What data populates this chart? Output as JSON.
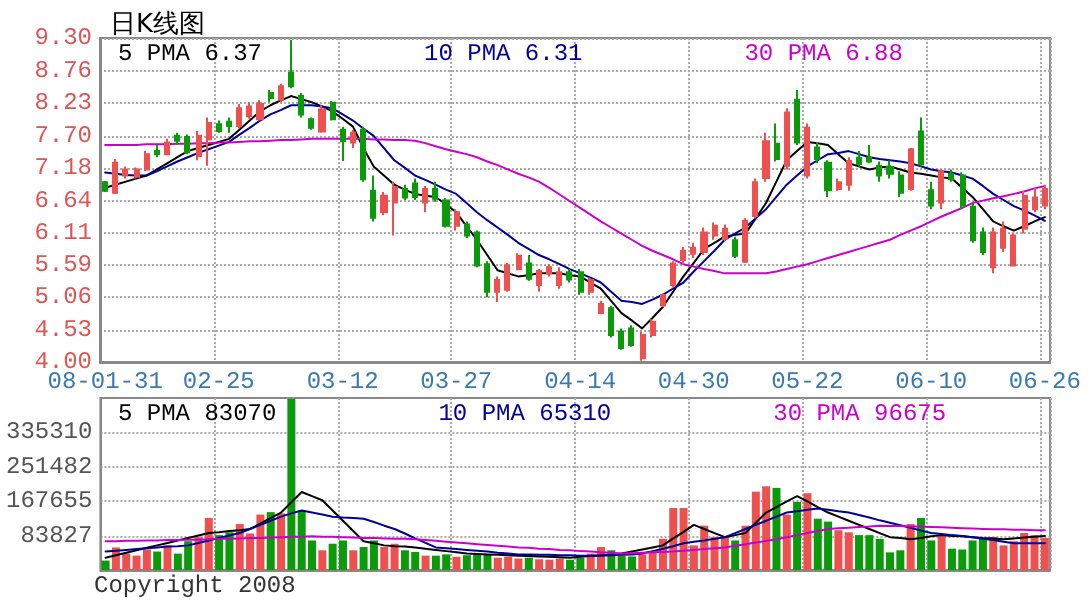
{
  "chart_data": [
    {
      "type": "candlestick",
      "title": "日K线图",
      "categories": [
        "08-01-31",
        null,
        null,
        null,
        null,
        null,
        null,
        null,
        null,
        null,
        null,
        "02-25",
        null,
        null,
        null,
        null,
        null,
        null,
        null,
        null,
        null,
        null,
        null,
        "03-12",
        null,
        null,
        null,
        null,
        null,
        null,
        null,
        null,
        null,
        null,
        "03-27",
        null,
        null,
        null,
        null,
        null,
        null,
        null,
        null,
        null,
        null,
        null,
        "04-14",
        null,
        null,
        null,
        null,
        null,
        null,
        null,
        null,
        null,
        null,
        "04-30",
        null,
        null,
        null,
        null,
        null,
        null,
        null,
        null,
        null,
        null,
        "05-22",
        null,
        null,
        null,
        null,
        null,
        null,
        null,
        null,
        null,
        null,
        null,
        "06-10",
        null,
        null,
        null,
        null,
        null,
        null,
        null,
        null,
        null,
        null,
        "06-26"
      ],
      "ohlc": [
        [
          6.94,
          6.96,
          6.78,
          6.8
        ],
        [
          6.77,
          7.32,
          6.75,
          7.26
        ],
        [
          7.05,
          7.2,
          7.0,
          7.15
        ],
        [
          7.03,
          7.18,
          7.0,
          7.15
        ],
        [
          7.15,
          7.45,
          7.12,
          7.4
        ],
        [
          7.45,
          7.55,
          7.35,
          7.4
        ],
        [
          7.4,
          7.65,
          7.38,
          7.59
        ],
        [
          7.7,
          7.75,
          7.55,
          7.62
        ],
        [
          7.68,
          7.72,
          7.4,
          7.43
        ],
        [
          7.37,
          7.78,
          7.3,
          7.7
        ],
        [
          7.64,
          8.0,
          7.21,
          7.91
        ],
        [
          7.89,
          7.95,
          7.75,
          7.78
        ],
        [
          7.93,
          8.0,
          7.75,
          7.86
        ],
        [
          7.86,
          8.22,
          7.82,
          8.15
        ],
        [
          8.02,
          8.25,
          7.98,
          8.18
        ],
        [
          7.97,
          8.28,
          7.95,
          8.22
        ],
        [
          8.4,
          8.45,
          8.25,
          8.32
        ],
        [
          8.29,
          8.55,
          8.25,
          8.51
        ],
        [
          8.73,
          9.27,
          8.48,
          8.51
        ],
        [
          8.35,
          8.4,
          8.0,
          8.05
        ],
        [
          7.97,
          8.0,
          7.8,
          7.83
        ],
        [
          7.77,
          8.2,
          7.75,
          8.13
        ],
        [
          8.24,
          8.27,
          7.95,
          7.97
        ],
        [
          7.8,
          7.85,
          7.29,
          7.61
        ],
        [
          7.59,
          7.8,
          7.5,
          7.75
        ],
        [
          7.8,
          7.85,
          6.95,
          6.99
        ],
        [
          6.8,
          7.05,
          6.3,
          6.36
        ],
        [
          6.45,
          6.78,
          6.4,
          6.72
        ],
        [
          6.61,
          6.95,
          6.07,
          6.86
        ],
        [
          6.83,
          6.9,
          6.65,
          6.69
        ],
        [
          6.92,
          7.0,
          6.65,
          6.7
        ],
        [
          6.61,
          6.88,
          6.45,
          6.83
        ],
        [
          6.83,
          6.95,
          6.62,
          6.67
        ],
        [
          6.64,
          6.68,
          6.2,
          6.23
        ],
        [
          6.23,
          6.5,
          6.15,
          6.45
        ],
        [
          6.25,
          6.3,
          6.03,
          6.07
        ],
        [
          6.12,
          6.15,
          5.55,
          5.58
        ],
        [
          5.6,
          5.65,
          5.06,
          5.15
        ],
        [
          5.15,
          5.4,
          4.98,
          5.34
        ],
        [
          5.18,
          5.62,
          5.15,
          5.58
        ],
        [
          5.52,
          5.78,
          5.5,
          5.74
        ],
        [
          5.61,
          5.75,
          5.33,
          5.36
        ],
        [
          5.26,
          5.52,
          5.15,
          5.49
        ],
        [
          5.45,
          5.6,
          5.4,
          5.55
        ],
        [
          5.26,
          5.55,
          5.2,
          5.47
        ],
        [
          5.47,
          5.52,
          5.3,
          5.35
        ],
        [
          5.47,
          5.52,
          5.1,
          5.15
        ],
        [
          5.15,
          5.38,
          5.1,
          5.34
        ],
        [
          4.8,
          5.0,
          4.78,
          4.95
        ],
        [
          4.88,
          4.92,
          4.4,
          4.44
        ],
        [
          4.5,
          4.55,
          4.2,
          4.23
        ],
        [
          4.55,
          4.6,
          4.25,
          4.28
        ],
        [
          4.06,
          4.5,
          4.02,
          4.44
        ],
        [
          4.44,
          4.7,
          4.4,
          4.66
        ],
        [
          4.93,
          5.12,
          4.9,
          5.09
        ],
        [
          5.26,
          5.65,
          5.22,
          5.61
        ],
        [
          5.67,
          5.88,
          5.6,
          5.82
        ],
        [
          5.77,
          5.95,
          5.7,
          5.87
        ],
        [
          5.8,
          6.2,
          5.75,
          6.12
        ],
        [
          6.07,
          6.28,
          6.0,
          6.23
        ],
        [
          6.02,
          6.25,
          5.98,
          6.18
        ],
        [
          5.99,
          6.05,
          5.7,
          5.74
        ],
        [
          5.64,
          6.35,
          5.62,
          6.31
        ],
        [
          6.39,
          7.0,
          6.35,
          6.94
        ],
        [
          7.01,
          7.75,
          6.95,
          7.61
        ],
        [
          7.57,
          7.9,
          7.28,
          7.32
        ],
        [
          7.21,
          8.15,
          7.15,
          8.08
        ],
        [
          8.29,
          8.45,
          7.55,
          7.59
        ],
        [
          7.05,
          7.9,
          7.0,
          7.83
        ],
        [
          7.51,
          7.6,
          7.25,
          7.32
        ],
        [
          7.26,
          7.3,
          6.7,
          6.81
        ],
        [
          6.83,
          7.0,
          6.8,
          6.94
        ],
        [
          6.9,
          7.35,
          6.8,
          7.29
        ],
        [
          7.34,
          7.45,
          7.2,
          7.24
        ],
        [
          7.34,
          7.55,
          7.25,
          7.28
        ],
        [
          7.21,
          7.28,
          6.95,
          7.05
        ],
        [
          7.19,
          7.3,
          7.0,
          7.08
        ],
        [
          7.05,
          7.12,
          6.7,
          6.77
        ],
        [
          6.83,
          7.5,
          6.8,
          7.48
        ],
        [
          7.77,
          8.0,
          7.2,
          7.23
        ],
        [
          6.81,
          6.95,
          6.5,
          6.56
        ],
        [
          6.61,
          7.15,
          6.5,
          7.12
        ],
        [
          7.08,
          7.15,
          6.95,
          6.99
        ],
        [
          7.05,
          7.1,
          6.5,
          6.56
        ],
        [
          6.54,
          6.6,
          5.95,
          5.99
        ],
        [
          6.12,
          6.2,
          5.75,
          5.8
        ],
        [
          5.55,
          6.2,
          5.45,
          6.12
        ],
        [
          5.87,
          6.3,
          5.8,
          6.18
        ],
        [
          5.58,
          6.1,
          5.58,
          6.07
        ],
        [
          6.18,
          6.8,
          6.1,
          6.72
        ],
        [
          6.5,
          6.85,
          6.45,
          6.69
        ],
        [
          6.56,
          6.9,
          6.5,
          6.83
        ]
      ],
      "colors": [
        "#0a9a0a",
        "#ee5050",
        "#ee5050",
        "#ee5050",
        "#ee5050",
        "#0a9a0a",
        "#ee5050",
        "#0a9a0a",
        "#0a9a0a",
        "#ee5050",
        "#ee5050",
        "#0a9a0a",
        "#0a9a0a",
        "#ee5050",
        "#ee5050",
        "#ee5050",
        "#0a9a0a",
        "#ee5050",
        "#0a9a0a",
        "#0a9a0a",
        "#0a9a0a",
        "#ee5050",
        "#0a9a0a",
        "#0a9a0a",
        "#ee5050",
        "#0a9a0a",
        "#0a9a0a",
        "#ee5050",
        "#ee5050",
        "#0a9a0a",
        "#0a9a0a",
        "#ee5050",
        "#0a9a0a",
        "#0a9a0a",
        "#ee5050",
        "#0a9a0a",
        "#0a9a0a",
        "#0a9a0a",
        "#ee5050",
        "#ee5050",
        "#ee5050",
        "#0a9a0a",
        "#ee5050",
        "#ee5050",
        "#ee5050",
        "#0a9a0a",
        "#0a9a0a",
        "#ee5050",
        "#ee5050",
        "#0a9a0a",
        "#0a9a0a",
        "#0a9a0a",
        "#ee5050",
        "#ee5050",
        "#ee5050",
        "#ee5050",
        "#ee5050",
        "#ee5050",
        "#ee5050",
        "#ee5050",
        "#ee5050",
        "#0a9a0a",
        "#ee5050",
        "#ee5050",
        "#ee5050",
        "#0a9a0a",
        "#ee5050",
        "#0a9a0a",
        "#ee5050",
        "#0a9a0a",
        "#0a9a0a",
        "#ee5050",
        "#ee5050",
        "#0a9a0a",
        "#0a9a0a",
        "#0a9a0a",
        "#0a9a0a",
        "#0a9a0a",
        "#ee5050",
        "#0a9a0a",
        "#0a9a0a",
        "#ee5050",
        "#0a9a0a",
        "#0a9a0a",
        "#0a9a0a",
        "#0a9a0a",
        "#ee5050",
        "#ee5050",
        "#ee5050",
        "#ee5050",
        "#ee5050",
        "#ee5050"
      ],
      "series": [
        {
          "type": "line",
          "name": "5 PMA 6.37",
          "color": "#000000",
          "values": [
            6.85,
            6.9,
            6.95,
            7.0,
            7.05,
            7.15,
            7.25,
            7.35,
            7.45,
            7.5,
            7.55,
            7.6,
            7.65,
            7.8,
            7.95,
            8.1,
            8.2,
            8.28,
            8.35,
            8.3,
            8.25,
            8.18,
            8.1,
            7.98,
            7.85,
            7.5,
            7.2,
            7.05,
            6.9,
            6.82,
            6.75,
            6.72,
            6.7,
            6.58,
            6.45,
            6.22,
            6.0,
            5.75,
            5.5,
            5.45,
            5.4,
            5.42,
            5.45,
            5.45,
            5.45,
            5.42,
            5.4,
            5.3,
            5.2,
            5.0,
            4.8,
            4.68,
            4.55,
            4.72,
            4.9,
            5.15,
            5.4,
            5.62,
            5.85,
            5.95,
            6.05,
            6.08,
            6.1,
            6.35,
            6.6,
            6.95,
            7.3,
            7.45,
            7.6,
            7.58,
            7.55,
            7.4,
            7.25,
            7.2,
            7.15,
            7.18,
            7.2,
            7.15,
            7.1,
            7.08,
            7.05,
            7.02,
            7.0,
            6.85,
            6.7,
            6.5,
            6.3,
            6.22,
            6.15,
            6.22,
            6.3,
            6.37
          ]
        },
        {
          "type": "line",
          "name": "10 PMA 6.31",
          "color": "#000099",
          "values": [
            7.1,
            7.08,
            7.06,
            7.05,
            7.05,
            7.12,
            7.2,
            7.28,
            7.35,
            7.42,
            7.48,
            7.54,
            7.6,
            7.72,
            7.83,
            7.95,
            8.05,
            8.12,
            8.2,
            8.2,
            8.2,
            8.18,
            8.15,
            8.05,
            7.95,
            7.82,
            7.7,
            7.5,
            7.3,
            7.18,
            7.05,
            6.98,
            6.9,
            6.82,
            6.75,
            6.6,
            6.45,
            6.32,
            6.2,
            6.08,
            5.95,
            5.85,
            5.75,
            5.68,
            5.6,
            5.52,
            5.45,
            5.38,
            5.3,
            5.15,
            5.0,
            4.98,
            4.95,
            5.02,
            5.1,
            5.2,
            5.3,
            5.48,
            5.65,
            5.82,
            6.0,
            6.1,
            6.2,
            6.35,
            6.5,
            6.7,
            6.9,
            7.05,
            7.2,
            7.3,
            7.4,
            7.42,
            7.45,
            7.4,
            7.35,
            7.32,
            7.3,
            7.28,
            7.25,
            7.2,
            7.15,
            7.12,
            7.1,
            7.05,
            7.0,
            6.88,
            6.75,
            6.65,
            6.55,
            6.48,
            6.4,
            6.31
          ]
        },
        {
          "type": "line",
          "name": "30 PMA 6.88",
          "color": "#cc00cc",
          "values": [
            7.55,
            7.55,
            7.55,
            7.55,
            7.56,
            7.56,
            7.56,
            7.57,
            7.57,
            7.58,
            7.58,
            7.59,
            7.59,
            7.6,
            7.61,
            7.61,
            7.62,
            7.63,
            7.63,
            7.64,
            7.65,
            7.65,
            7.65,
            7.65,
            7.65,
            7.65,
            7.64,
            7.64,
            7.63,
            7.63,
            7.62,
            7.58,
            7.53,
            7.48,
            7.44,
            7.4,
            7.35,
            7.28,
            7.22,
            7.15,
            7.08,
            7.02,
            6.95,
            6.85,
            6.74,
            6.63,
            6.52,
            6.41,
            6.3,
            6.2,
            6.1,
            6.0,
            5.9,
            5.82,
            5.75,
            5.68,
            5.6,
            5.56,
            5.52,
            5.49,
            5.45,
            5.45,
            5.45,
            5.45,
            5.45,
            5.48,
            5.52,
            5.56,
            5.6,
            5.65,
            5.7,
            5.75,
            5.8,
            5.85,
            5.9,
            5.95,
            6.0,
            6.08,
            6.15,
            6.22,
            6.3,
            6.38,
            6.45,
            6.52,
            6.6,
            6.64,
            6.68,
            6.71,
            6.75,
            6.79,
            6.84,
            6.88
          ]
        }
      ],
      "ylim": [
        4.0,
        9.3
      ],
      "yticks": [
        {
          "value": 4.0,
          "label": "4.00"
        },
        4.53,
        5.06,
        5.59,
        6.11,
        6.64,
        7.18,
        {
          "value": 7.7,
          "label": "7.70"
        },
        8.23,
        8.76,
        {
          "value": 9.3,
          "label": "9.30"
        }
      ],
      "grid": true,
      "legend": "top"
    },
    {
      "type": "bar",
      "categories": [
        null,
        null,
        null,
        null,
        null,
        null,
        null,
        null,
        null,
        null,
        null,
        null,
        null,
        null,
        null,
        null,
        null,
        null,
        null,
        null,
        null,
        null,
        null,
        null,
        null,
        null,
        null,
        null,
        null,
        null,
        null,
        null,
        null,
        null,
        null,
        null,
        null,
        null,
        null,
        null,
        null,
        null,
        null,
        null,
        null,
        null,
        null,
        null,
        null,
        null,
        null,
        null,
        null,
        null,
        null,
        null,
        null,
        null,
        null,
        null,
        null,
        null,
        null,
        null,
        null,
        null,
        null,
        null,
        null,
        null,
        null,
        null,
        null,
        null,
        null,
        null,
        null,
        null,
        null,
        null,
        null,
        null,
        null,
        null,
        null,
        null,
        null,
        null,
        null,
        null,
        null,
        null
      ],
      "values": [
        23000,
        55000,
        40000,
        35000,
        50000,
        45000,
        60000,
        40000,
        70000,
        80000,
        127000,
        85000,
        92000,
        112000,
        89000,
        135000,
        141000,
        138000,
        417000,
        145000,
        72000,
        48000,
        64000,
        72000,
        48000,
        56000,
        72000,
        56000,
        64000,
        48000,
        44000,
        35000,
        35000,
        38000,
        32000,
        36000,
        40000,
        38000,
        30000,
        32000,
        28000,
        30000,
        26000,
        25000,
        28000,
        25000,
        30000,
        40000,
        56000,
        48000,
        35000,
        33000,
        38000,
        45000,
        76000,
        151000,
        151000,
        60000,
        108000,
        80000,
        80000,
        72000,
        108000,
        191000,
        204000,
        200000,
        135000,
        166000,
        187000,
        125000,
        118000,
        97000,
        92000,
        85000,
        85000,
        76000,
        43000,
        48000,
        112000,
        127000,
        72000,
        85000,
        52000,
        50000,
        72000,
        76000,
        80000,
        60000,
        70000,
        90000,
        85000,
        78000
      ],
      "colors": [
        "#0a9a0a",
        "#ee5050",
        "#ee5050",
        "#ee5050",
        "#ee5050",
        "#0a9a0a",
        "#ee5050",
        "#0a9a0a",
        "#0a9a0a",
        "#ee5050",
        "#ee5050",
        "#0a9a0a",
        "#0a9a0a",
        "#ee5050",
        "#ee5050",
        "#ee5050",
        "#0a9a0a",
        "#ee5050",
        "#0a9a0a",
        "#0a9a0a",
        "#0a9a0a",
        "#ee5050",
        "#0a9a0a",
        "#0a9a0a",
        "#ee5050",
        "#0a9a0a",
        "#0a9a0a",
        "#ee5050",
        "#ee5050",
        "#0a9a0a",
        "#0a9a0a",
        "#ee5050",
        "#0a9a0a",
        "#0a9a0a",
        "#ee5050",
        "#0a9a0a",
        "#0a9a0a",
        "#0a9a0a",
        "#ee5050",
        "#ee5050",
        "#ee5050",
        "#0a9a0a",
        "#ee5050",
        "#ee5050",
        "#ee5050",
        "#0a9a0a",
        "#0a9a0a",
        "#ee5050",
        "#ee5050",
        "#0a9a0a",
        "#0a9a0a",
        "#0a9a0a",
        "#ee5050",
        "#ee5050",
        "#ee5050",
        "#ee5050",
        "#ee5050",
        "#ee5050",
        "#ee5050",
        "#ee5050",
        "#ee5050",
        "#0a9a0a",
        "#ee5050",
        "#ee5050",
        "#ee5050",
        "#0a9a0a",
        "#ee5050",
        "#0a9a0a",
        "#ee5050",
        "#0a9a0a",
        "#0a9a0a",
        "#ee5050",
        "#ee5050",
        "#0a9a0a",
        "#0a9a0a",
        "#0a9a0a",
        "#0a9a0a",
        "#0a9a0a",
        "#ee5050",
        "#0a9a0a",
        "#0a9a0a",
        "#ee5050",
        "#0a9a0a",
        "#0a9a0a",
        "#0a9a0a",
        "#0a9a0a",
        "#ee5050",
        "#ee5050",
        "#ee5050",
        "#ee5050",
        "#ee5050",
        "#ee5050"
      ],
      "series": [
        {
          "type": "line",
          "name": "5 PMA 83070",
          "color": "#000000",
          "values": [
            30000,
            36000,
            42000,
            48000,
            54000,
            60000,
            66000,
            72000,
            78000,
            84000,
            90000,
            92000,
            95000,
            97000,
            100000,
            113000,
            127000,
            140000,
            165000,
            190000,
            180000,
            170000,
            145000,
            120000,
            95000,
            70000,
            65000,
            60000,
            58000,
            57000,
            55000,
            52000,
            49000,
            46000,
            43000,
            40000,
            39000,
            38000,
            37000,
            36000,
            35000,
            34000,
            33000,
            32000,
            31000,
            30000,
            32000,
            34000,
            36000,
            38000,
            40000,
            45000,
            50000,
            55000,
            60000,
            77000,
            93000,
            110000,
            100000,
            90000,
            80000,
            85000,
            90000,
            115000,
            140000,
            153000,
            167000,
            180000,
            167000,
            153000,
            140000,
            130000,
            120000,
            110000,
            100000,
            90000,
            80000,
            78000,
            75000,
            78000,
            82000,
            85000,
            83000,
            82000,
            80000,
            78000,
            77000,
            75000,
            77000,
            79000,
            81000,
            83000
          ]
        },
        {
          "type": "line",
          "name": "10 PMA 65310",
          "color": "#000099",
          "values": [
            45000,
            47000,
            49000,
            51000,
            53000,
            55000,
            57000,
            58000,
            60000,
            66000,
            72000,
            78000,
            84000,
            90000,
            100000,
            110000,
            120000,
            130000,
            138000,
            145000,
            140000,
            135000,
            130000,
            128000,
            127000,
            125000,
            117000,
            108000,
            100000,
            89000,
            77000,
            66000,
            55000,
            53000,
            51000,
            49000,
            47000,
            45000,
            42000,
            40000,
            38000,
            38000,
            37000,
            37000,
            36000,
            36000,
            35000,
            35000,
            35000,
            36000,
            37000,
            38000,
            40000,
            46000,
            52000,
            58000,
            65000,
            69000,
            72000,
            76000,
            80000,
            90000,
            100000,
            110000,
            120000,
            130000,
            140000,
            143000,
            147000,
            150000,
            147000,
            143000,
            140000,
            134000,
            128000,
            121000,
            115000,
            109000,
            103000,
            96000,
            90000,
            88000,
            85000,
            83000,
            80000,
            76000,
            73000,
            69000,
            65000,
            65000,
            65000,
            65000
          ]
        },
        {
          "type": "line",
          "name": "30 PMA 96675",
          "color": "#cc00cc",
          "values": [
            70000,
            70000,
            71000,
            71000,
            72000,
            72000,
            73000,
            73000,
            74000,
            74000,
            75000,
            76000,
            76000,
            77000,
            78000,
            78000,
            79000,
            80000,
            81000,
            81000,
            82000,
            81000,
            81000,
            80000,
            79000,
            78000,
            78000,
            77000,
            76000,
            76000,
            75000,
            73000,
            71000,
            69000,
            67000,
            65000,
            63000,
            61000,
            59000,
            57000,
            55000,
            54000,
            52000,
            51000,
            49000,
            48000,
            46000,
            45000,
            43000,
            42000,
            40000,
            41000,
            42000,
            43000,
            44000,
            45000,
            47000,
            49000,
            51000,
            53000,
            55000,
            59000,
            63000,
            67000,
            71000,
            75000,
            80000,
            85000,
            90000,
            95000,
            100000,
            102000,
            103000,
            105000,
            106000,
            108000,
            107000,
            107000,
            106000,
            106000,
            105000,
            104000,
            103000,
            102000,
            101000,
            100000,
            99000,
            99000,
            98000,
            98000,
            97000,
            97000
          ]
        }
      ],
      "ylim": [
        0,
        419138
      ],
      "yticks": [
        83827,
        167655,
        251482,
        335310
      ],
      "grid": true,
      "legend": "top",
      "tick_labels": "y",
      "annotations": [
        "Copyright 2008"
      ]
    }
  ]
}
